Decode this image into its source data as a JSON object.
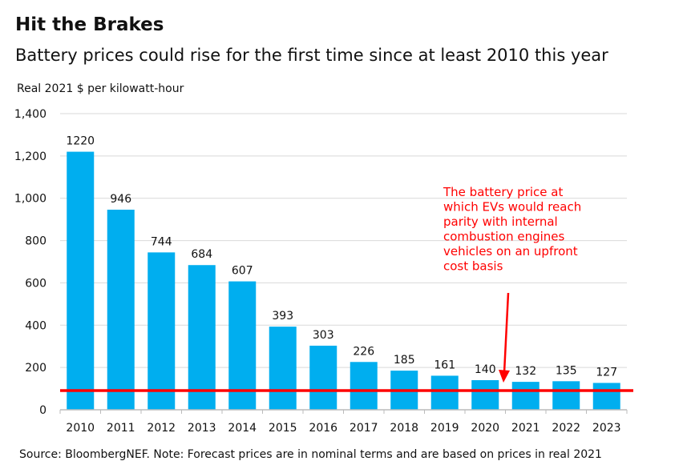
{
  "chart_data": {
    "type": "bar",
    "title": "Hit the Brakes",
    "subtitle": "Battery prices could rise for the first time since at least 2010 this year",
    "ylabel": "Real 2021 $ per kilowatt-hour",
    "xlabel": "",
    "categories": [
      "2010",
      "2011",
      "2012",
      "2013",
      "2014",
      "2015",
      "2016",
      "2017",
      "2018",
      "2019",
      "2020",
      "2021",
      "2022",
      "2023"
    ],
    "values": [
      1220,
      946,
      744,
      684,
      607,
      393,
      303,
      226,
      185,
      161,
      140,
      132,
      135,
      127
    ],
    "ylim": [
      0,
      1400
    ],
    "yticks": [
      "0",
      "200",
      "400",
      "600",
      "800",
      "1,000",
      "1,200",
      "1,400"
    ],
    "grid": true,
    "bar_color": "#00AEEF",
    "reference_line": {
      "value": 91,
      "color": "#FF0000"
    },
    "annotation": {
      "lines": [
        "The battery price at",
        "which EVs would reach",
        "parity with internal",
        "combustion engines",
        "vehicles on an upfront",
        "cost basis"
      ],
      "color": "#FF0000"
    },
    "footnote": "Source: BloombergNEF. Note: Forecast prices are in nominal terms and are based on prices in real 2021"
  }
}
